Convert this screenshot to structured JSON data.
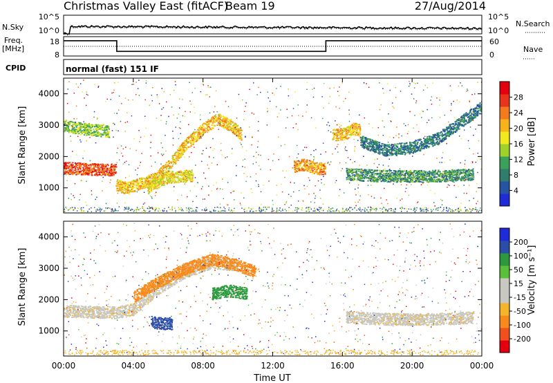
{
  "header": {
    "title": "Christmas Valley East (fitACF)",
    "beam": "Beam 19",
    "date": "27/Aug/2014"
  },
  "summary": {
    "nsky_label": "N.Sky",
    "nsky_ticks": [
      "10^5",
      "10^0"
    ],
    "nsearch_label": "N.Search",
    "nsearch_ticks": [
      "10^5",
      "10^0"
    ],
    "freq_label_1": "Freq.",
    "freq_label_2": "[MHz]",
    "freq_ticks": [
      "18",
      "8"
    ],
    "nave_label": "Nave",
    "nave_ticks": [
      "60",
      "0"
    ],
    "cpid_label": "CPID",
    "cpid_value": "normal (fast) 151 IF",
    "freq_series_mhz": [
      {
        "t": 0.0,
        "f": 15.9
      },
      {
        "t": 3.05,
        "f": 15.9
      },
      {
        "t": 3.05,
        "f": 10.4
      },
      {
        "t": 15.05,
        "f": 10.4
      },
      {
        "t": 15.05,
        "f": 15.9
      },
      {
        "t": 24.0,
        "f": 15.9
      }
    ]
  },
  "chart_data": [
    {
      "type": "heatmap",
      "panel": "power",
      "ylabel": "Slant Range [km]",
      "xlabel": "",
      "ylim": [
        200,
        4500
      ],
      "xlim": [
        0,
        24
      ],
      "yticks": [
        1000,
        2000,
        3000,
        4000
      ],
      "colorbar_label": "Power [dB]",
      "colorbar_ticks": [
        "4",
        "8",
        "12",
        "16",
        "20",
        "24",
        "28"
      ],
      "colors": [
        "#1f2bd6",
        "#2753a3",
        "#2f7d6a",
        "#3aa05a",
        "#9ed12a",
        "#f2e81f",
        "#f7b21c",
        "#f37a1d",
        "#e8341a",
        "#e3000f"
      ],
      "features": [
        {
          "name": "band-A",
          "t": [
            0.0,
            1.0,
            2.0,
            3.0
          ],
          "range_km": [
            1650,
            1620,
            1600,
            1580
          ],
          "power_db": 26
        },
        {
          "name": "band-B",
          "t": [
            3.0,
            3.6,
            4.4,
            5.2,
            6.0,
            7.0,
            8.0,
            8.8,
            9.6,
            10.2
          ],
          "range_km": [
            1100,
            1000,
            1150,
            1300,
            1700,
            2400,
            2900,
            3200,
            3000,
            2700
          ],
          "power_db": 20
        },
        {
          "name": "band-C",
          "t": [
            0.0,
            1.0,
            2.0,
            2.6
          ],
          "range_km": [
            3000,
            2900,
            2850,
            2800
          ],
          "power_db": 14
        },
        {
          "name": "band-D",
          "t": [
            4.8,
            5.4,
            6.0,
            6.8,
            7.4
          ],
          "range_km": [
            1000,
            1200,
            1350,
            1380,
            1400
          ],
          "power_db": 18
        },
        {
          "name": "band-E",
          "t": [
            13.2,
            13.8,
            14.4,
            15.0
          ],
          "range_km": [
            1700,
            1750,
            1650,
            1600
          ],
          "power_db": 22
        },
        {
          "name": "band-F",
          "t": [
            15.4,
            16.2,
            16.6,
            17.0
          ],
          "range_km": [
            2700,
            2750,
            2900,
            2850
          ],
          "power_db": 20
        },
        {
          "name": "band-G",
          "t": [
            16.2,
            18.0,
            20.0,
            22.0,
            23.5
          ],
          "range_km": [
            1450,
            1400,
            1380,
            1400,
            1450
          ],
          "power_db": 10
        },
        {
          "name": "band-H",
          "t": [
            17.0,
            18.5,
            20.0,
            21.5,
            23.0,
            24.0
          ],
          "range_km": [
            2500,
            2200,
            2300,
            2600,
            3200,
            3600
          ],
          "power_db": 8
        }
      ]
    },
    {
      "type": "heatmap",
      "panel": "velocity",
      "ylabel": "Slant Range [km]",
      "xlabel": "Time UT",
      "ylim": [
        200,
        4500
      ],
      "xlim": [
        0,
        24
      ],
      "yticks": [
        1000,
        2000,
        3000,
        4000
      ],
      "xticks": [
        "00:00",
        "04:00",
        "08:00",
        "12:00",
        "16:00",
        "20:00",
        "00:00"
      ],
      "colorbar_label": "Velocity [m s⁻¹]",
      "colorbar_ticks": [
        "-200",
        "-100",
        "-50",
        "-15",
        "15",
        "50",
        "100",
        "200"
      ],
      "colors": [
        "#e3000f",
        "#f0501c",
        "#f88a1c",
        "#f5b52a",
        "#c8c8c0",
        "#c8c8c0",
        "#5bbf3a",
        "#2c9a3c",
        "#2a4ea8",
        "#1f2bd6"
      ],
      "features": [
        {
          "name": "gs-band",
          "t": [
            0.0,
            1.5,
            3.0,
            4.0,
            5.5,
            7.0,
            8.5,
            10.0
          ],
          "range_km": [
            1650,
            1620,
            1600,
            1700,
            2400,
            2900,
            3200,
            3100
          ],
          "velocity": 0
        },
        {
          "name": "upper-orange",
          "t": [
            4.0,
            5.5,
            7.0,
            8.5,
            10.0,
            11.0
          ],
          "range_km": [
            2100,
            2600,
            3000,
            3300,
            3100,
            2900
          ],
          "velocity": -60
        },
        {
          "name": "blue-patch",
          "t": [
            5.0,
            5.6,
            6.2
          ],
          "range_km": [
            1300,
            1250,
            1250
          ],
          "velocity": 150
        },
        {
          "name": "green-patch",
          "t": [
            8.5,
            9.5,
            10.5
          ],
          "range_km": [
            2200,
            2300,
            2200
          ],
          "velocity": 70
        },
        {
          "name": "grey-late",
          "t": [
            16.2,
            18.0,
            20.0,
            22.0,
            23.5
          ],
          "range_km": [
            1450,
            1400,
            1380,
            1400,
            1450
          ],
          "velocity": 0
        }
      ]
    }
  ]
}
